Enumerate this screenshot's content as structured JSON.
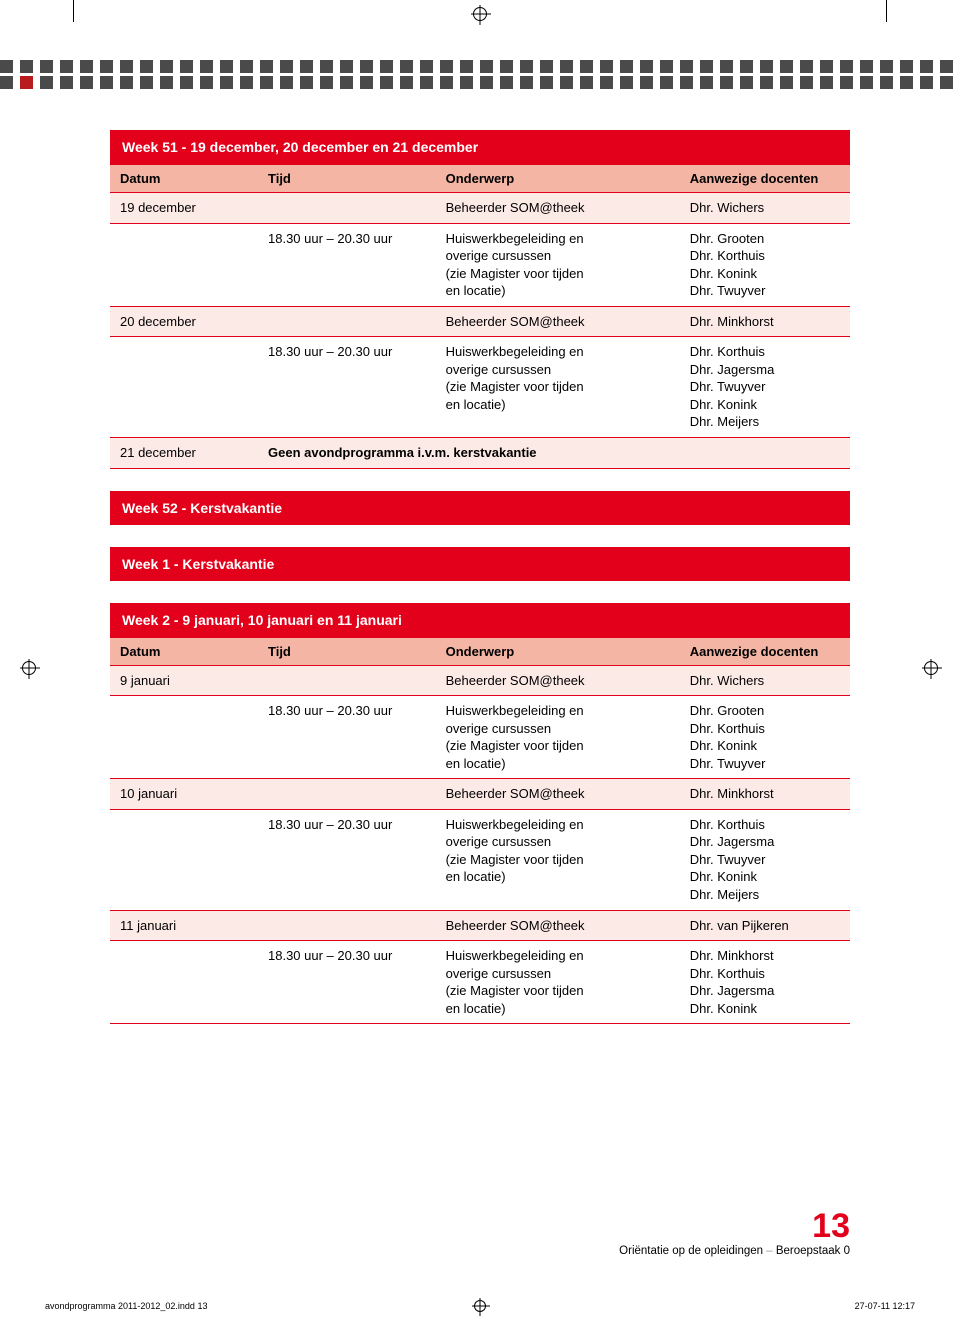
{
  "colors": {
    "red": "#e2001a",
    "header_pink": "#f4b5a4",
    "row_pink": "#fceae6",
    "pattern_dark": "#4a4a4a",
    "pattern_red": "#b81c1c",
    "page_num_color": "#e2001a"
  },
  "table1": {
    "title": "Week 51 - 19 december, 20 december en 21 december",
    "columns": [
      "Datum",
      "Tijd",
      "Onderwerp",
      "Aanwezige docenten"
    ],
    "rows": [
      {
        "datum": "19 december",
        "tijd": "",
        "onderwerp": "Beheerder SOM@theek",
        "docenten": "Dhr. Wichers",
        "shade": true
      },
      {
        "datum": "",
        "tijd": "18.30 uur – 20.30 uur",
        "onderwerp": "Huiswerkbegeleiding en\noverige cursussen\n(zie Magister voor tijden\nen locatie)",
        "docenten": "Dhr. Grooten\nDhr. Korthuis\nDhr. Konink\nDhr. Twuyver",
        "shade": false
      },
      {
        "datum": "20 december",
        "tijd": "",
        "onderwerp": "Beheerder SOM@theek",
        "docenten": "Dhr. Minkhorst",
        "shade": true
      },
      {
        "datum": "",
        "tijd": "18.30 uur – 20.30 uur",
        "onderwerp": "Huiswerkbegeleiding en\noverige cursussen\n(zie Magister voor tijden\nen locatie)",
        "docenten": "Dhr. Korthuis\nDhr. Jagersma\nDhr. Twuyver\nDhr. Konink\nDhr. Meijers",
        "shade": false
      },
      {
        "datum": "21 december",
        "tijd_span": "Geen avondprogramma i.v.m. kerstvakantie",
        "shade": true,
        "bold": true
      }
    ]
  },
  "banner1": "Week 52 - Kerstvakantie",
  "banner2": "Week 1 - Kerstvakantie",
  "table2": {
    "title": "Week 2 - 9 januari, 10 januari en 11 januari",
    "columns": [
      "Datum",
      "Tijd",
      "Onderwerp",
      "Aanwezige docenten"
    ],
    "rows": [
      {
        "datum": "9 januari",
        "tijd": "",
        "onderwerp": "Beheerder SOM@theek",
        "docenten": "Dhr. Wichers",
        "shade": true
      },
      {
        "datum": "",
        "tijd": "18.30 uur – 20.30 uur",
        "onderwerp": "Huiswerkbegeleiding en\noverige cursussen\n(zie Magister voor tijden\nen locatie)",
        "docenten": "Dhr. Grooten\nDhr. Korthuis\nDhr. Konink\nDhr. Twuyver",
        "shade": false
      },
      {
        "datum": "10 januari",
        "tijd": "",
        "onderwerp": "Beheerder SOM@theek",
        "docenten": "Dhr. Minkhorst",
        "shade": true
      },
      {
        "datum": "",
        "tijd": "18.30 uur – 20.30 uur",
        "onderwerp": "Huiswerkbegeleiding en\noverige cursussen\n(zie Magister voor tijden\nen locatie)",
        "docenten": "Dhr. Korthuis\nDhr. Jagersma\nDhr. Twuyver\nDhr. Konink\nDhr. Meijers",
        "shade": false
      },
      {
        "datum": "11 januari",
        "tijd": "",
        "onderwerp": "Beheerder SOM@theek",
        "docenten": "Dhr. van Pijkeren",
        "shade": true
      },
      {
        "datum": "",
        "tijd": "18.30 uur – 20.30 uur",
        "onderwerp": "Huiswerkbegeleiding en\noverige cursussen\n(zie Magister voor tijden\nen locatie)",
        "docenten": "Dhr. Minkhorst\nDhr. Korthuis\nDhr. Jagersma\nDhr. Konink",
        "shade": false
      }
    ]
  },
  "page_number": "13",
  "footer_line": {
    "a": "Oriëntatie op de opleidingen",
    "sep": " – ",
    "b": "Beroepstaak 0"
  },
  "bottom": {
    "file": "avondprogramma 2011-2012_02.indd   13",
    "stamp": "27-07-11   12:17"
  },
  "pattern": {
    "row1": [
      "d",
      "d",
      "d",
      "d",
      "d",
      "d",
      "d",
      "d",
      "d",
      "d",
      "d",
      "d",
      "d",
      "d",
      "d",
      "d",
      "d",
      "d",
      "d",
      "d",
      "d",
      "d",
      "d",
      "d",
      "d",
      "d",
      "d",
      "d",
      "d",
      "d",
      "d",
      "d",
      "d",
      "d",
      "d",
      "d",
      "d",
      "d",
      "d",
      "d",
      "d",
      "d",
      "d",
      "d",
      "d",
      "d",
      "d",
      "d",
      "d"
    ],
    "row2": [
      "d",
      "r",
      "d",
      "d",
      "d",
      "d",
      "d",
      "d",
      "d",
      "d",
      "d",
      "d",
      "d",
      "d",
      "d",
      "d",
      "d",
      "d",
      "d",
      "d",
      "d",
      "d",
      "d",
      "d",
      "d",
      "d",
      "d",
      "d",
      "d",
      "d",
      "d",
      "d",
      "d",
      "d",
      "d",
      "d",
      "d",
      "d",
      "d",
      "d",
      "d",
      "d",
      "d",
      "d",
      "d",
      "d",
      "d",
      "d",
      "d"
    ]
  }
}
